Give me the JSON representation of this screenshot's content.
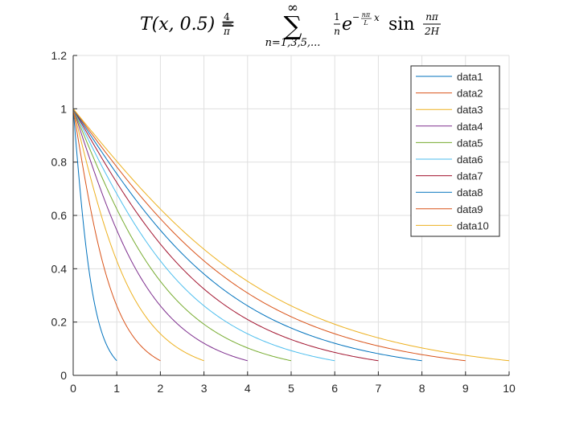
{
  "chart_data": {
    "type": "line",
    "title_parts": {
      "lhs": "T(x, 0.5) =",
      "frac_num": "4",
      "frac_den": "π",
      "sum_top": "∞",
      "sum_sign": "∑",
      "sum_bottom": "n=1,3,5,...",
      "term_num": "1",
      "term_den": "n",
      "exp_base": "e",
      "exp_sign": "−",
      "exp_num": "nπ",
      "exp_den": "L",
      "exp_var": "x",
      "sin": "sin",
      "sin_num": "nπ",
      "sin_den": "2H"
    },
    "xlabel": "",
    "ylabel": "",
    "xlim": [
      0,
      10
    ],
    "ylim": [
      0,
      1.2
    ],
    "xticks": [
      "0",
      "1",
      "2",
      "3",
      "4",
      "5",
      "6",
      "7",
      "8",
      "9",
      "10"
    ],
    "yticks": [
      "0",
      "0.2",
      "0.4",
      "0.6",
      "0.8",
      "1",
      "1.2"
    ],
    "grid": true,
    "legend_position": "top-right",
    "end_value": 0.056,
    "series": [
      {
        "name": "data1",
        "L": 1,
        "color": "#0072BD"
      },
      {
        "name": "data2",
        "L": 2,
        "color": "#D95319"
      },
      {
        "name": "data3",
        "L": 3,
        "color": "#EDB120"
      },
      {
        "name": "data4",
        "L": 4,
        "color": "#7E2F8E"
      },
      {
        "name": "data5",
        "L": 5,
        "color": "#77AC30"
      },
      {
        "name": "data6",
        "L": 6,
        "color": "#4DBEEE"
      },
      {
        "name": "data7",
        "L": 7,
        "color": "#A2142F"
      },
      {
        "name": "data8",
        "L": 8,
        "color": "#0072BD"
      },
      {
        "name": "data9",
        "L": 9,
        "color": "#D95319"
      },
      {
        "name": "data10",
        "L": 10,
        "color": "#EDB120"
      }
    ]
  }
}
